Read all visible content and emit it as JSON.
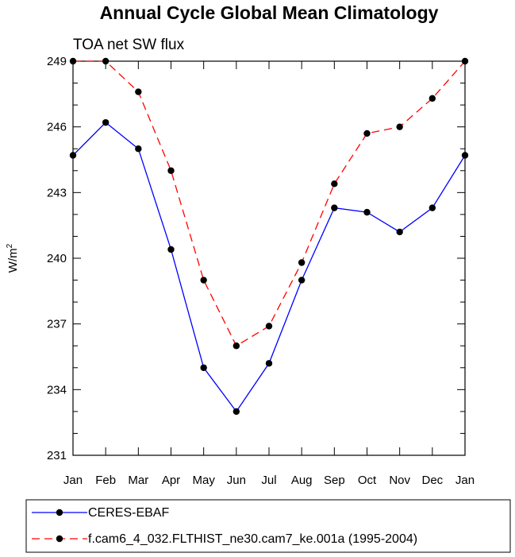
{
  "chart_data": {
    "type": "line",
    "title": "Annual Cycle Global Mean Climatology",
    "subtitle": "TOA net SW flux",
    "xlabel": "",
    "ylabel": "W/m",
    "ylabel_superscript": "2",
    "categories": [
      "Jan",
      "Feb",
      "Mar",
      "Apr",
      "May",
      "Jun",
      "Jul",
      "Aug",
      "Sep",
      "Oct",
      "Nov",
      "Dec",
      "Jan"
    ],
    "ylim": [
      231,
      249
    ],
    "yticks": [
      231,
      234,
      237,
      240,
      243,
      246,
      249
    ],
    "yminor_step": 1,
    "grid": false,
    "legend_position": "bottom-left",
    "series": [
      {
        "name": "CERES-EBAF",
        "color": "#0000ff",
        "style": "solid",
        "values": [
          244.7,
          246.2,
          245.0,
          240.4,
          235.0,
          233.0,
          235.2,
          239.0,
          242.3,
          242.1,
          241.2,
          242.3,
          244.7
        ]
      },
      {
        "name": "f.cam6_4_032.FLTHIST_ne30.cam7_ke.001a (1995-2004)",
        "color": "#ff0000",
        "style": "dashed",
        "values": [
          249.0,
          249.0,
          247.6,
          244.0,
          239.0,
          236.0,
          236.9,
          239.8,
          243.4,
          245.7,
          246.0,
          247.3,
          249.0
        ]
      }
    ]
  }
}
